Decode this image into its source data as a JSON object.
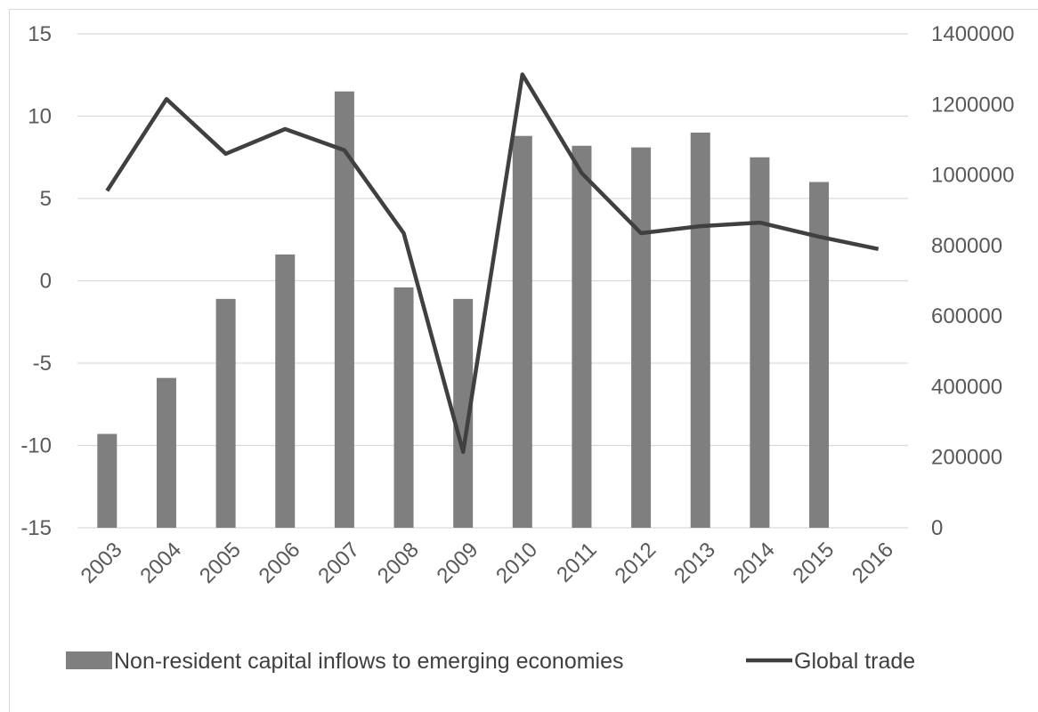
{
  "chart_data": {
    "type": "bar",
    "title": "",
    "categories": [
      "2003",
      "2004",
      "2005",
      "2006",
      "2007",
      "2008",
      "2009",
      "2010",
      "2011",
      "2012",
      "2013",
      "2014",
      "2015",
      "2016"
    ],
    "series": [
      {
        "name": "Non-resident capital inflows to emerging economies",
        "type": "bar",
        "axis": "left",
        "color": "#7f7f7f",
        "values": [
          -9.3,
          -5.9,
          -1.1,
          1.6,
          11.5,
          -0.4,
          -1.1,
          8.8,
          8.2,
          8.1,
          9.0,
          7.5,
          6.0,
          null
        ]
      },
      {
        "name": "Global trade",
        "type": "line",
        "axis": "right",
        "color": "#404040",
        "values": [
          955000,
          1215000,
          1060000,
          1130000,
          1070000,
          835000,
          215000,
          1285000,
          1005000,
          835000,
          855000,
          865000,
          825000,
          790000
        ]
      }
    ],
    "y_left": {
      "min": -15,
      "max": 15,
      "ticks": [
        "15",
        "10",
        "5",
        "0",
        "-5",
        "-10",
        "-15"
      ]
    },
    "y_right": {
      "min": 0,
      "max": 1400000,
      "ticks": [
        "1400000",
        "1200000",
        "1000000",
        "800000",
        "600000",
        "400000",
        "200000",
        "0"
      ]
    },
    "grid": true,
    "legend_position": "bottom"
  }
}
